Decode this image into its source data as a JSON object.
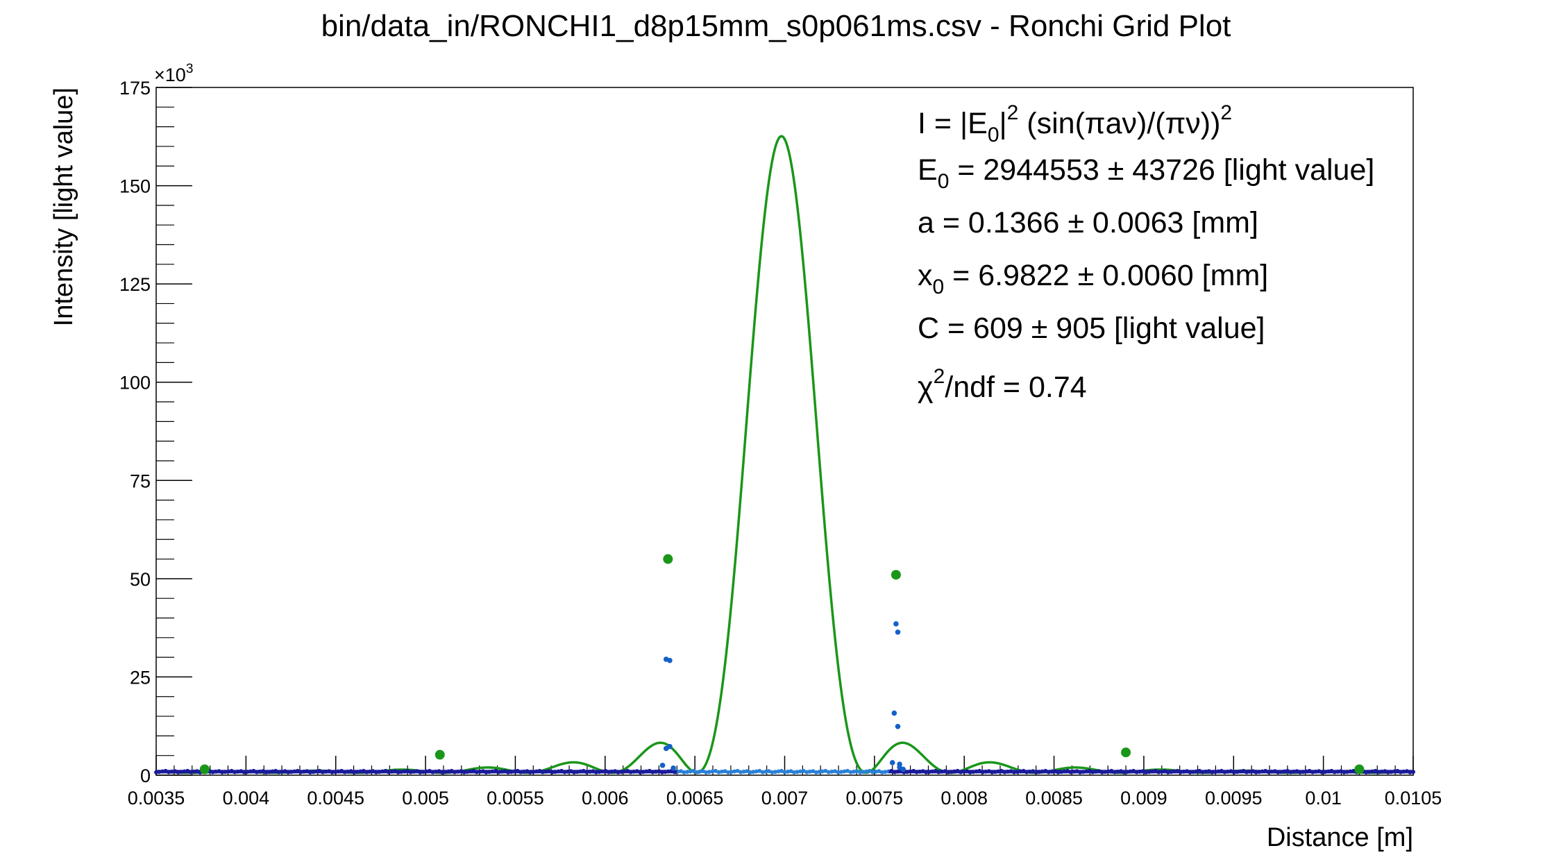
{
  "chart_data": {
    "type": "scatter",
    "title": "bin/data_in/RONCHI1_d8p15mm_s0p061ms.csv - Ronchi Grid Plot",
    "xlabel": "Distance [m]",
    "ylabel": "Intensity [light value]",
    "y_exponent_label": "×10",
    "y_exponent_power": "3",
    "xlim": [
      0.0035,
      0.0105
    ],
    "ylim": [
      0,
      175000
    ],
    "x_tick_labels": [
      "0.0035",
      "0.004",
      "0.0045",
      "0.005",
      "0.0055",
      "0.006",
      "0.0065",
      "0.007",
      "0.0075",
      "0.008",
      "0.0085",
      "0.009",
      "0.0095",
      "0.01",
      "0.0105"
    ],
    "x_tick_values": [
      0.0035,
      0.004,
      0.0045,
      0.005,
      0.0055,
      0.006,
      0.0065,
      0.007,
      0.0075,
      0.008,
      0.0085,
      0.009,
      0.0095,
      0.01,
      0.0105
    ],
    "y_tick_labels": [
      "0",
      "25",
      "50",
      "75",
      "100",
      "125",
      "150",
      "175"
    ],
    "y_tick_values": [
      0,
      25000,
      50000,
      75000,
      100000,
      125000,
      150000,
      175000
    ],
    "fit": {
      "color": "#1a961a",
      "E0": 2944553,
      "a_mm": 0.1366,
      "x0_mm": 6.9822,
      "C": 609,
      "peak": 162000
    },
    "fit_points": {
      "color": "#1a961a",
      "x": [
        0.00377,
        0.00508,
        0.00635,
        0.00762,
        0.0089,
        0.0102
      ],
      "y": [
        1500,
        5200,
        55000,
        51000,
        5800,
        1500
      ]
    },
    "measured_points": {
      "color": "#1560c8",
      "x": [
        0.00632,
        0.00634,
        0.00634,
        0.00636,
        0.00636,
        0.00638,
        0.0076,
        0.00761,
        0.00762,
        0.00763,
        0.00763,
        0.00764,
        0.00764,
        0.00766
      ],
      "y": [
        2500,
        6800,
        29500,
        29200,
        7300,
        1800,
        3200,
        15800,
        38500,
        36400,
        12400,
        2800,
        2000,
        1500
      ]
    },
    "baseline": {
      "dense_color": "#1a1a9a",
      "sparse_color": "#2a80d8",
      "value": 900
    },
    "legend_lines": {
      "formula_parts": [
        "I = |E",
        "0",
        "|",
        "2",
        " (sin(πaν)/(πν))",
        "2"
      ],
      "e0_parts": [
        "E",
        "0",
        " = 2944553 ± 43726 [light value]"
      ],
      "a_text": "a = 0.1366 ± 0.0063 [mm]",
      "x0_parts": [
        "x",
        "0",
        " = 6.9822 ± 0.0060 [mm]"
      ],
      "c_text": "C = 609 ± 905 [light value]",
      "chi_parts": [
        "χ",
        "2",
        "/ndf = 0.74"
      ]
    }
  }
}
